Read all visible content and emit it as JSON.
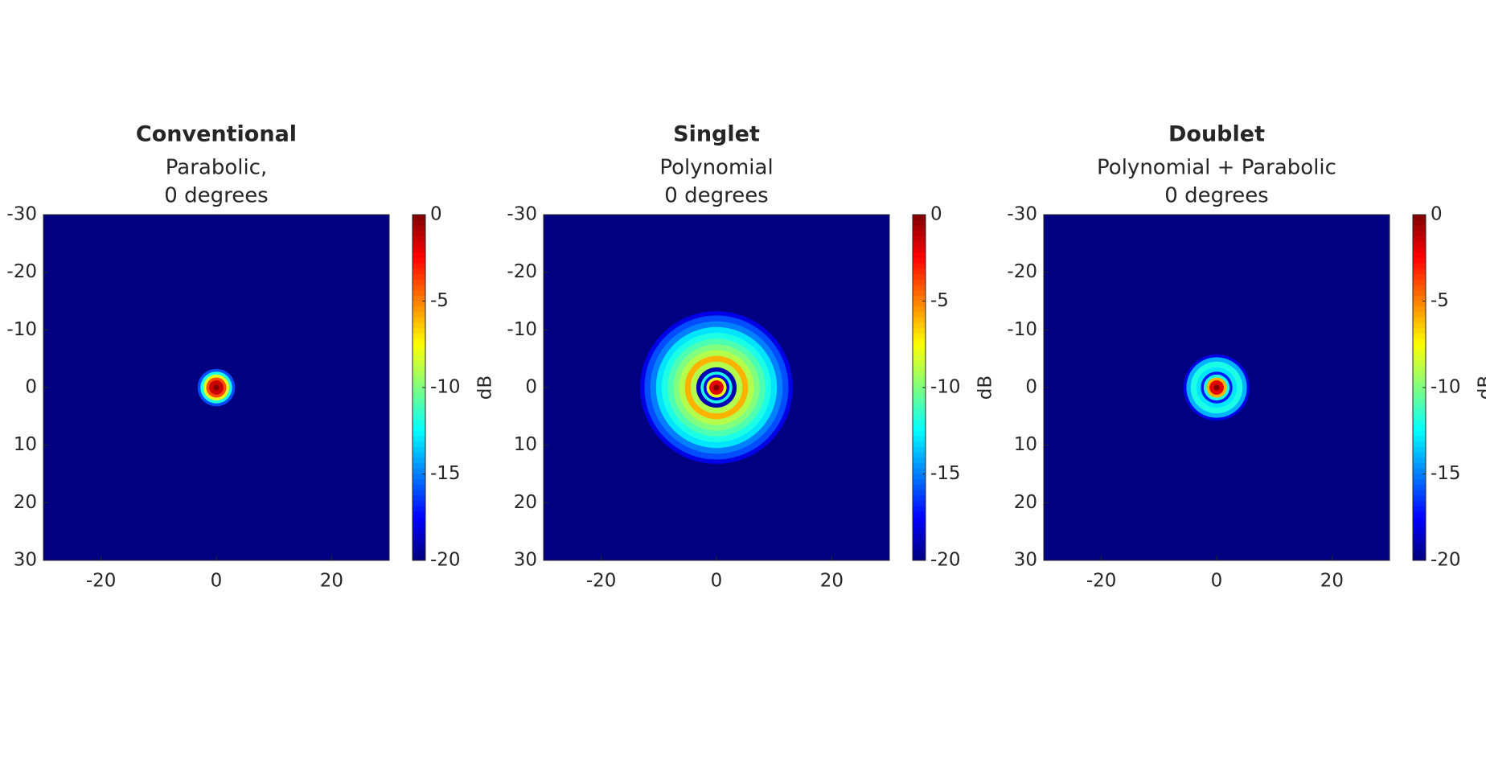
{
  "chart_data": [
    {
      "type": "heatmap",
      "title": "Conventional",
      "subtitle": [
        "Parabolic,",
        "0 degrees"
      ],
      "xlim": [
        -30,
        30
      ],
      "ylim": [
        -30,
        30
      ],
      "y_reversed": true,
      "xticks": [
        -20,
        0,
        20
      ],
      "yticks": [
        -30,
        -20,
        -10,
        0,
        10,
        20,
        30
      ],
      "colormap": "jet",
      "clim": [
        -20,
        0
      ],
      "cticks": [
        0,
        -5,
        -10,
        -15,
        -20
      ],
      "colorbar_label": "dB",
      "r": [
        0,
        1,
        1.5,
        2,
        2.5,
        3,
        3.5
      ],
      "values": [
        0,
        -1.5,
        -4,
        -8,
        -12,
        -16,
        -20
      ]
    },
    {
      "type": "heatmap",
      "title": "Singlet",
      "subtitle": [
        "Polynomial",
        "0 degrees"
      ],
      "xlim": [
        -30,
        30
      ],
      "ylim": [
        -30,
        30
      ],
      "y_reversed": true,
      "xticks": [
        -20,
        0,
        20
      ],
      "yticks": [
        -30,
        -20,
        -10,
        0,
        10,
        20,
        30
      ],
      "colormap": "jet",
      "clim": [
        -20,
        0
      ],
      "cticks": [
        0,
        -5,
        -10,
        -15,
        -20
      ],
      "colorbar_label": "dB",
      "r": [
        0,
        1,
        1.5,
        2,
        2.5,
        3,
        4,
        5,
        6,
        7,
        8,
        9,
        10,
        11,
        12,
        13,
        13.5
      ],
      "values": [
        0,
        -2,
        -8,
        -18,
        -12,
        -19,
        -9,
        -6,
        -9,
        -10,
        -11,
        -12,
        -13,
        -15,
        -16,
        -18,
        -20
      ]
    },
    {
      "type": "heatmap",
      "title": "Doublet",
      "subtitle": [
        "Polynomial + Parabolic",
        "0 degrees"
      ],
      "xlim": [
        -30,
        30
      ],
      "ylim": [
        -30,
        30
      ],
      "y_reversed": true,
      "xticks": [
        -20,
        0,
        20
      ],
      "yticks": [
        -30,
        -20,
        -10,
        0,
        10,
        20,
        30
      ],
      "colormap": "jet",
      "clim": [
        -20,
        0
      ],
      "cticks": [
        0,
        -5,
        -10,
        -15,
        -20
      ],
      "colorbar_label": "dB",
      "r": [
        0,
        1,
        1.5,
        2,
        2.5,
        3,
        4,
        5,
        5.5,
        6
      ],
      "values": [
        0,
        -2,
        -6,
        -12,
        -17,
        -13,
        -12,
        -14,
        -18,
        -20
      ]
    }
  ]
}
